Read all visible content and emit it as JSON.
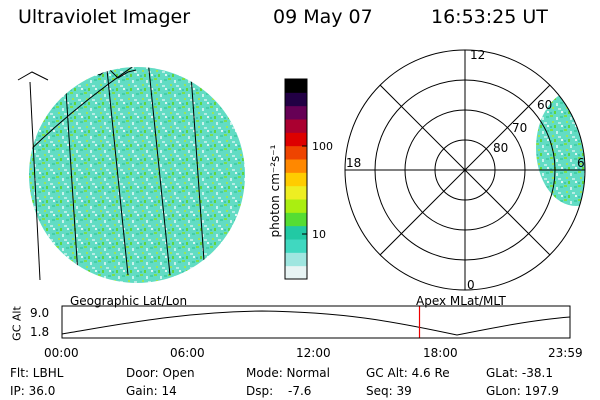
{
  "header": {
    "instrument": "Ultraviolet Imager",
    "date": "09 May 07",
    "time": "16:53:25 UT"
  },
  "colorbar": {
    "unit_label": "photon cm⁻²s⁻¹",
    "ticks": [
      "100",
      "10"
    ],
    "colors": [
      "#e8f4f4",
      "#9fe6e0",
      "#40d8c0",
      "#22c9a4",
      "#55dd33",
      "#aaee11",
      "#eeee22",
      "#ffcc00",
      "#ff8800",
      "#ee4400",
      "#dd0000",
      "#aa0030",
      "#660055",
      "#220044",
      "#000000"
    ]
  },
  "polar_plot": {
    "mlt_labels": {
      "top": "12",
      "left": "18",
      "right": "6",
      "bottom": "0"
    },
    "lat_labels": [
      "80",
      "70",
      "60"
    ]
  },
  "timeline": {
    "left_label": "Geographic Lat/Lon",
    "right_label": "Apex MLat/MLT",
    "y_axis_title": "GC Alt",
    "y_ticks": [
      "9.0",
      "1.8"
    ],
    "x_ticks": [
      "00:00",
      "06:00",
      "12:00",
      "18:00",
      "23:59"
    ],
    "current_time_marker_hours": 16.89
  },
  "info": {
    "filter": "Flt: LBHL",
    "ip": "IP: 36.0",
    "door": "Door: Open",
    "gain": "Gain: 14",
    "mode": "Mode: Normal",
    "dsp": "Dsp:",
    "dsp_value": "-7.6",
    "gc_alt": "GC Alt: 4.6 Re",
    "seq": "Seq: 39",
    "glat": "GLat: -38.1",
    "glon": "GLon: 197.9"
  }
}
